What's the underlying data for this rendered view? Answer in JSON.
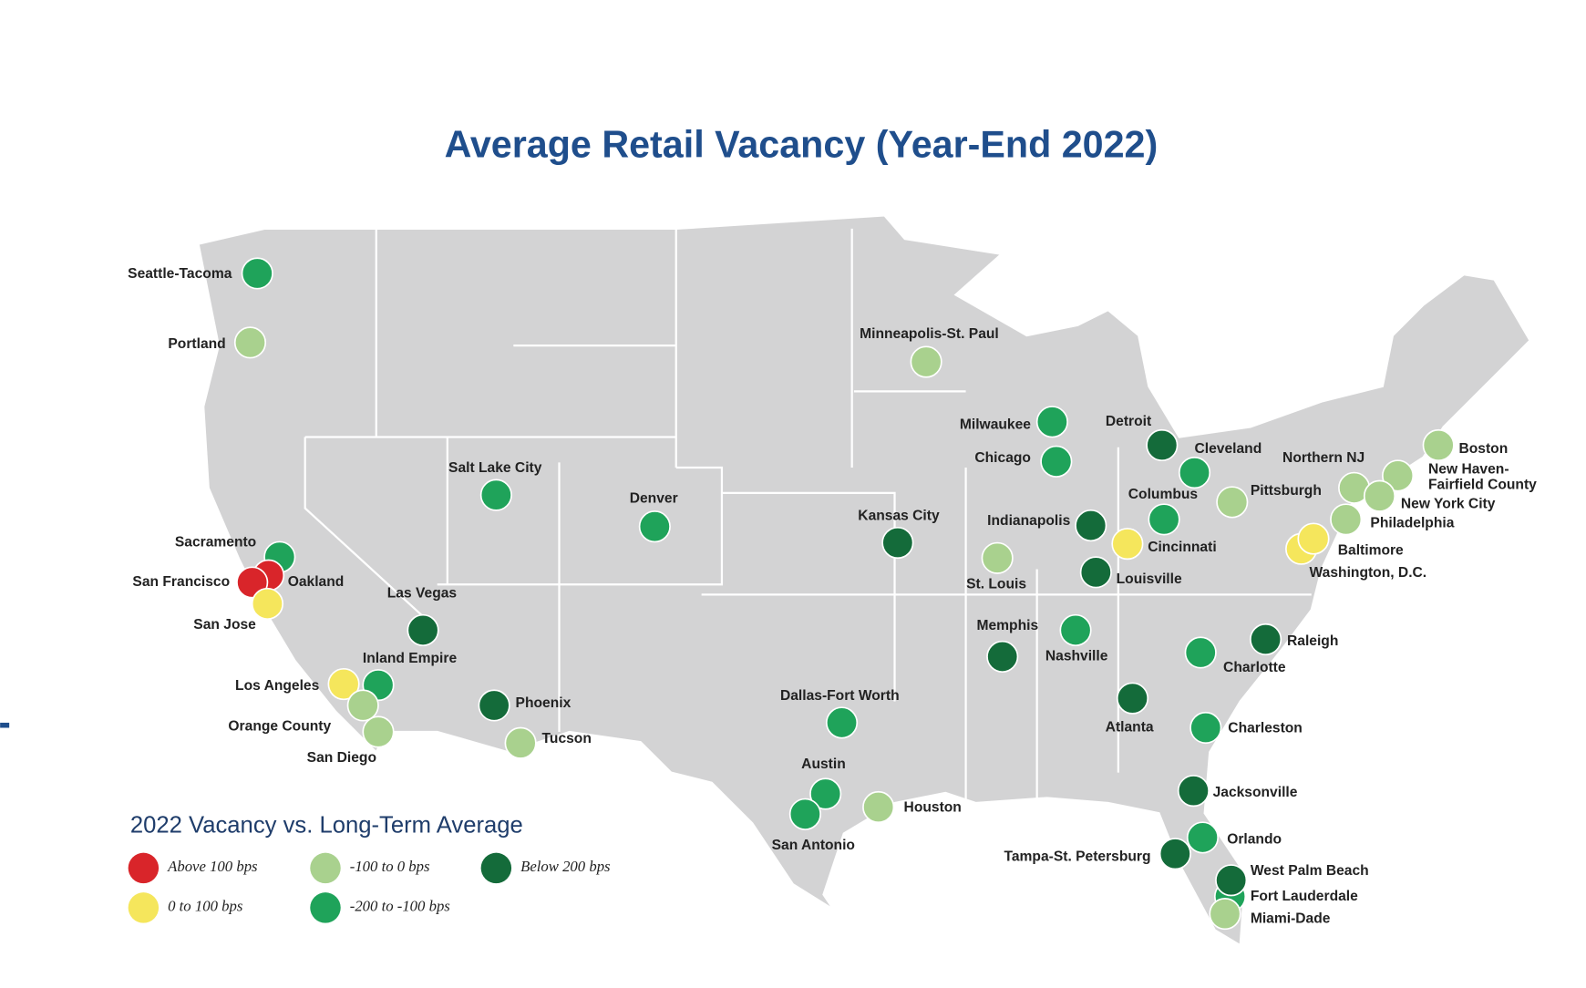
{
  "title": "Average Retail Vacancy (Year-End 2022)",
  "legend": {
    "title": "2022 Vacancy vs. Long-Term Average",
    "items": [
      {
        "label": "Above 100 bps",
        "color": "#d9252a"
      },
      {
        "label": "0 to 100 bps",
        "color": "#f5e65c"
      },
      {
        "label": "-100 to 0 bps",
        "color": "#a9d18e"
      },
      {
        "label": "-200 to -100 bps",
        "color": "#1fa35a"
      },
      {
        "label": "Below 200 bps",
        "color": "#146b3a"
      }
    ]
  },
  "cities": [
    {
      "name": "Seattle-Tacoma",
      "color": "#1fa35a"
    },
    {
      "name": "Portland",
      "color": "#a9d18e"
    },
    {
      "name": "Minneapolis-St. Paul",
      "color": "#a9d18e"
    },
    {
      "name": "Milwaukee",
      "color": "#1fa35a"
    },
    {
      "name": "Chicago",
      "color": "#1fa35a"
    },
    {
      "name": "Detroit",
      "color": "#146b3a"
    },
    {
      "name": "Cleveland",
      "color": "#1fa35a"
    },
    {
      "name": "Boston",
      "color": "#a9d18e"
    },
    {
      "name": "Northern NJ",
      "color": "#a9d18e"
    },
    {
      "name": "New Haven-Fairfield County",
      "color": "#a9d18e"
    },
    {
      "name": "New York City",
      "color": "#a9d18e"
    },
    {
      "name": "Philadelphia",
      "color": "#a9d18e"
    },
    {
      "name": "Pittsburgh",
      "color": "#a9d18e"
    },
    {
      "name": "Columbus",
      "color": "#1fa35a"
    },
    {
      "name": "Indianapolis",
      "color": "#146b3a"
    },
    {
      "name": "Cincinnati",
      "color": "#f5e65c"
    },
    {
      "name": "Louisville",
      "color": "#146b3a"
    },
    {
      "name": "St. Louis",
      "color": "#a9d18e"
    },
    {
      "name": "Washington, D.C.",
      "color": "#f5e65c"
    },
    {
      "name": "Baltimore",
      "color": "#f5e65c"
    },
    {
      "name": "Salt Lake City",
      "color": "#1fa35a"
    },
    {
      "name": "Denver",
      "color": "#1fa35a"
    },
    {
      "name": "Kansas City",
      "color": "#146b3a"
    },
    {
      "name": "Sacramento",
      "color": "#1fa35a"
    },
    {
      "name": "Oakland",
      "color": "#d9252a"
    },
    {
      "name": "San Francisco",
      "color": "#d9252a"
    },
    {
      "name": "San Jose",
      "color": "#f5e65c"
    },
    {
      "name": "Las Vegas",
      "color": "#146b3a"
    },
    {
      "name": "Inland Empire",
      "color": "#1fa35a"
    },
    {
      "name": "Los Angeles",
      "color": "#f5e65c"
    },
    {
      "name": "Orange County",
      "color": "#a9d18e"
    },
    {
      "name": "San Diego",
      "color": "#a9d18e"
    },
    {
      "name": "Phoenix",
      "color": "#146b3a"
    },
    {
      "name": "Tucson",
      "color": "#a9d18e"
    },
    {
      "name": "Memphis",
      "color": "#146b3a"
    },
    {
      "name": "Nashville",
      "color": "#1fa35a"
    },
    {
      "name": "Raleigh",
      "color": "#146b3a"
    },
    {
      "name": "Charlotte",
      "color": "#1fa35a"
    },
    {
      "name": "Atlanta",
      "color": "#146b3a"
    },
    {
      "name": "Charleston",
      "color": "#1fa35a"
    },
    {
      "name": "Dallas-Fort Worth",
      "color": "#1fa35a"
    },
    {
      "name": "Austin",
      "color": "#1fa35a"
    },
    {
      "name": "San Antonio",
      "color": "#1fa35a"
    },
    {
      "name": "Houston",
      "color": "#a9d18e"
    },
    {
      "name": "Jacksonville",
      "color": "#146b3a"
    },
    {
      "name": "Orlando",
      "color": "#1fa35a"
    },
    {
      "name": "Tampa-St. Petersburg",
      "color": "#146b3a"
    },
    {
      "name": "Fort Lauderdale",
      "color": "#1fa35a"
    },
    {
      "name": "West Palm Beach",
      "color": "#146b3a"
    },
    {
      "name": "Miami-Dade",
      "color": "#a9d18e"
    }
  ]
}
